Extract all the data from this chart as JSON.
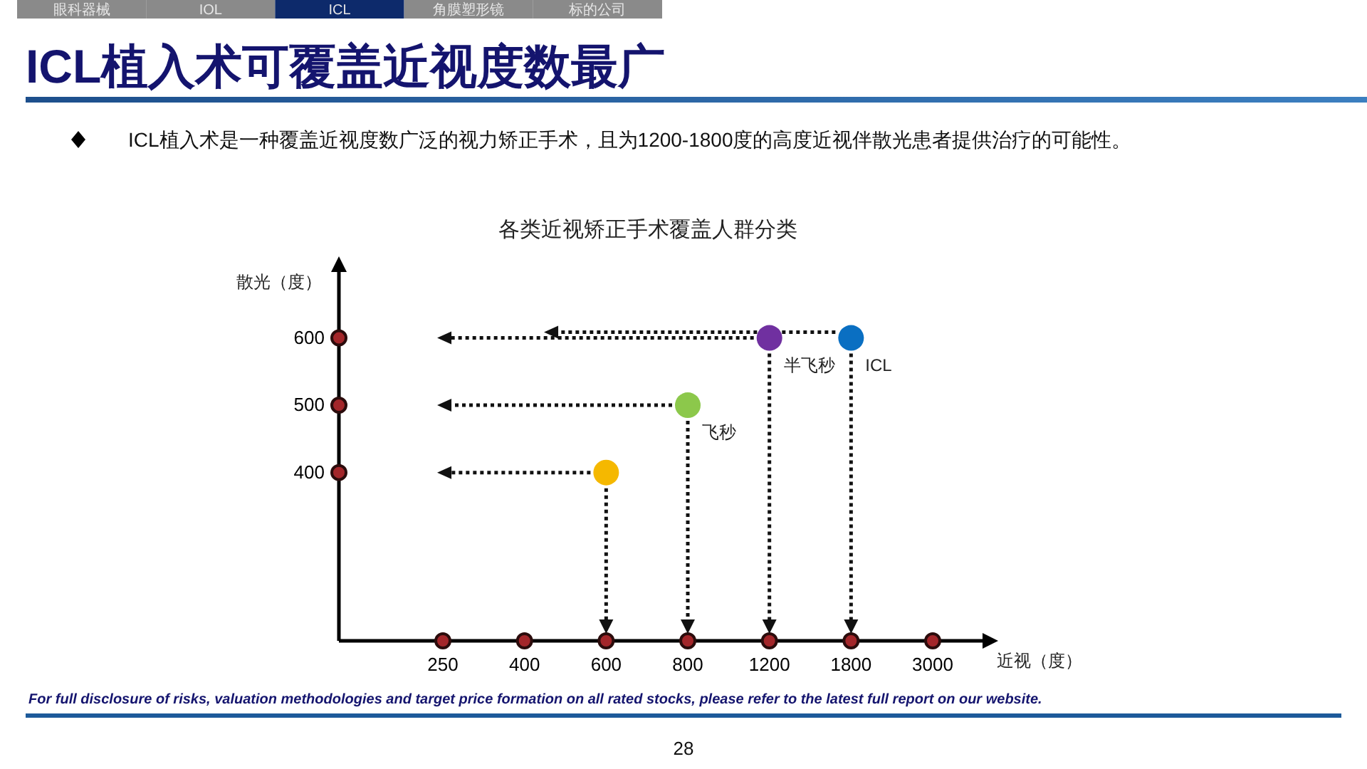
{
  "chart_data": {
    "type": "scatter",
    "title": "ICL植入术可覆盖近视度数最广",
    "subtitle": "各类近视矫正手术覆盖人群分类",
    "xlabel": "近视（度）",
    "ylabel": "散光（度）",
    "categories": [
      "250",
      "400",
      "600",
      "800",
      "1200",
      "1800",
      "3000"
    ],
    "series": [
      {
        "color": "#f5b800",
        "values": [
          null,
          null,
          400,
          null,
          null,
          null,
          null
        ]
      },
      {
        "name": "飞秒",
        "color": "#8cc84b",
        "values": [
          null,
          null,
          null,
          500,
          null,
          null,
          null
        ]
      },
      {
        "name": "半飞秒",
        "color": "#7030a0",
        "values": [
          null,
          null,
          null,
          null,
          600,
          null,
          null
        ]
      },
      {
        "name": "ICL",
        "color": "#0a6fc2",
        "values": [
          null,
          null,
          null,
          null,
          null,
          600,
          null
        ]
      }
    ],
    "ylim": [
      150,
      700
    ],
    "yticks": [
      400,
      500,
      600
    ],
    "marker": "circle",
    "annotations": [
      "ICL植入术是一种覆盖近视度数广泛的视力矫正手术，且为1200-1800度的高度近视伴散光患者提供治疗的可能性。",
      "眼科器械",
      "IOL",
      "ICL",
      "角膜塑形镜",
      "标的公司",
      "For full disclosure of risks, valuation methodologies and target price formation on all rated stocks, please refer to the latest full report on our website.",
      "28"
    ]
  }
}
